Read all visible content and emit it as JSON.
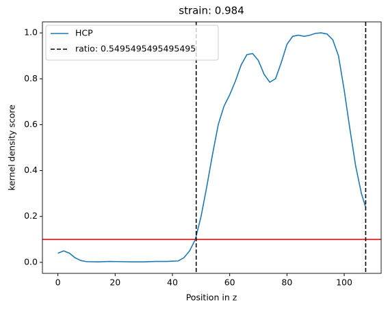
{
  "chart_data": {
    "type": "line",
    "title": "strain: 0.984",
    "xlabel": "Position in z",
    "ylabel": "kernel density score",
    "x": [
      0,
      2,
      4,
      6,
      8,
      10,
      14,
      18,
      22,
      26,
      30,
      34,
      38,
      42,
      44,
      46,
      48,
      50,
      52,
      54,
      56,
      58,
      60,
      62,
      64,
      66,
      68,
      70,
      72,
      74,
      76,
      78,
      80,
      82,
      84,
      86,
      88,
      90,
      92,
      94,
      96,
      98,
      100,
      102,
      104,
      106,
      107.5
    ],
    "series": [
      {
        "name": "HCP",
        "color": "#1f77b4",
        "values": [
          0.04,
          0.05,
          0.04,
          0.02,
          0.008,
          0.003,
          0.002,
          0.004,
          0.003,
          0.002,
          0.002,
          0.004,
          0.004,
          0.006,
          0.02,
          0.05,
          0.1,
          0.2,
          0.33,
          0.47,
          0.6,
          0.68,
          0.73,
          0.79,
          0.86,
          0.905,
          0.91,
          0.88,
          0.82,
          0.785,
          0.8,
          0.87,
          0.95,
          0.985,
          0.99,
          0.985,
          0.99,
          0.998,
          1.0,
          0.995,
          0.97,
          0.9,
          0.75,
          0.58,
          0.42,
          0.3,
          0.24
        ]
      }
    ],
    "vlines": {
      "name": "ratio: 0.5495495495495495",
      "color": "#000000",
      "values": [
        48.3,
        107.5
      ]
    },
    "hlines": {
      "color": "#ff0000",
      "values": [
        0.1
      ]
    },
    "xlim": [
      -5.4,
      112.9
    ],
    "ylim": [
      -0.048,
      1.048
    ],
    "xticks": [
      0,
      20,
      40,
      60,
      80,
      100
    ],
    "yticks": [
      {
        "value": 0,
        "label": "0.0"
      },
      {
        "value": 0.2,
        "label": "0.2"
      },
      {
        "value": 0.4,
        "label": "0.4"
      },
      {
        "value": 0.6,
        "label": "0.6"
      },
      {
        "value": 0.8,
        "label": "0.8"
      },
      {
        "value": 1,
        "label": "1.0"
      }
    ],
    "legend": "upper left"
  }
}
